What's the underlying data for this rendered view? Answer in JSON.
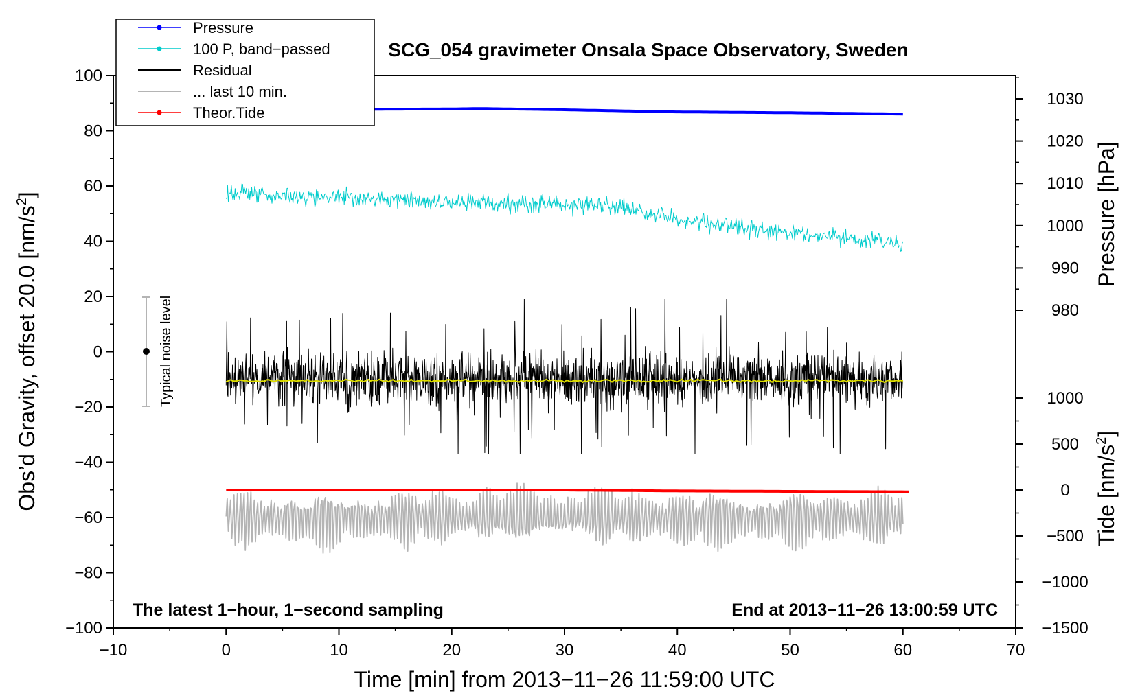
{
  "chart_data": {
    "type": "line",
    "title": "SCG_054 gravimeter Onsala Space Observatory, Sweden",
    "xlabel": "Time [min] from 2013−11−26 11:59:00 UTC",
    "ylabel": "Obs’d Gravity, offset 20.0 [nm/s",
    "ylabel_sup": "2",
    "ylabel_close": "]",
    "y2label": "Pressure [hPa]",
    "y3label": "Tide [nm/s",
    "y3label_sup": "2",
    "y3label_close": "]",
    "xlim": [
      -10,
      70
    ],
    "ylim": [
      -100,
      100
    ],
    "y2lim": [
      980,
      1030
    ],
    "y3lim": [
      -1500,
      1000
    ],
    "x_ticks": [
      -10,
      0,
      10,
      20,
      30,
      40,
      50,
      60,
      70
    ],
    "x_tick_labels": [
      "−10",
      "0",
      "10",
      "20",
      "30",
      "40",
      "50",
      "60",
      "70"
    ],
    "y_ticks": [
      100,
      80,
      60,
      40,
      20,
      0,
      -20,
      -40,
      -60,
      -80,
      -100
    ],
    "y_tick_labels": [
      "100",
      "80",
      "60",
      "40",
      "20",
      "0",
      "−20",
      "−40",
      "−60",
      "−80",
      "−100"
    ],
    "y2_ticks": [
      1030,
      1020,
      1010,
      1000,
      990,
      980
    ],
    "y2_tick_labels": [
      "1030",
      "1020",
      "1010",
      "1000",
      "990",
      "980"
    ],
    "y3_ticks": [
      1000,
      500,
      0,
      -500,
      -1000,
      -1500
    ],
    "y3_tick_labels": [
      "1000",
      "500",
      "0",
      "−500",
      "−1000",
      "−1500"
    ],
    "grid": false,
    "legend_position": "top-left",
    "series": [
      {
        "name": "Pressure",
        "color": "#0000ff",
        "axis": "pressure",
        "x": [
          0,
          10,
          20,
          22.5,
          30,
          40,
          50,
          60
        ],
        "values": [
          1027.6,
          1027.5,
          1027.6,
          1027.7,
          1027.4,
          1026.9,
          1026.7,
          1026.4
        ]
      },
      {
        "name": "100 P, band−passed",
        "color": "#00cccc",
        "axis": "gravity",
        "x": [
          0,
          10,
          20,
          30,
          35,
          40,
          45,
          50,
          55,
          60
        ],
        "values": [
          57,
          56,
          54,
          53,
          52,
          48,
          45,
          43,
          41,
          39
        ],
        "noise_amplitude": 3.5
      },
      {
        "name": "Residual",
        "color": "#000000",
        "axis": "gravity",
        "x": [
          0,
          60
        ],
        "values": [
          -10,
          -10
        ],
        "noise_amplitude": 10,
        "spike_range": [
          -37,
          19
        ]
      },
      {
        "name": "... last 10 min.",
        "color": "#b4b4b4",
        "axis": "gravity",
        "x": [
          0,
          60
        ],
        "values": [
          -60,
          -60
        ],
        "noise_amplitude": 12,
        "spike_range": [
          -86,
          -39
        ]
      },
      {
        "name": "Theor.Tide",
        "color": "#ff0000",
        "axis": "tide",
        "x": [
          0,
          20,
          30,
          40,
          50,
          60.5
        ],
        "values": [
          0,
          0,
          0,
          -10,
          -15,
          -20
        ]
      },
      {
        "name": "Residual smoothed",
        "color": "#dddd00",
        "axis": "gravity",
        "x": [
          0,
          60
        ],
        "values": [
          -10.5,
          -10.5
        ],
        "in_legend": false
      }
    ],
    "legend": [
      {
        "label": "Pressure",
        "color": "#0000ff",
        "marker": true
      },
      {
        "label": "100 P, band−passed",
        "color": "#00cccc",
        "marker": true
      },
      {
        "label": "Residual",
        "color": "#000000",
        "marker": false
      },
      {
        "label": "... last 10 min.",
        "color": "#b4b4b4",
        "marker": false
      },
      {
        "label": "Theor.Tide",
        "color": "#ff0000",
        "marker": true
      }
    ],
    "noise_bar": {
      "label": "Typical noise level",
      "x": -7,
      "low": -20,
      "high": 20,
      "center": 0
    },
    "annotations": {
      "bottom_left": "The latest 1−hour, 1−second sampling",
      "bottom_right": "End at 2013−11−26 13:00:59 UTC"
    }
  }
}
